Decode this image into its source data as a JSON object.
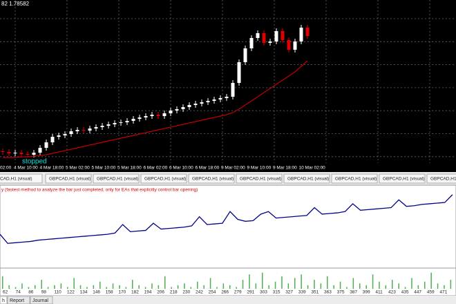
{
  "chart_data": {
    "type": "candlestick",
    "price_label": "82 1.78582",
    "annotation": "stopped",
    "ylim": [
      1.74,
      1.787
    ],
    "up_color": "#ffffff",
    "down_color": "#e00000",
    "open": [
      1.7432,
      1.743,
      1.7426,
      1.7428,
      1.7424,
      1.7422,
      1.7428,
      1.7442,
      1.7458,
      1.7474,
      1.7478,
      1.7482,
      1.749,
      1.7494,
      1.7492,
      1.7498,
      1.7502,
      1.7506,
      1.751,
      1.7514,
      1.7516,
      1.752,
      1.7526,
      1.753,
      1.7534,
      1.7538,
      1.7534,
      1.7542,
      1.755,
      1.7554,
      1.756,
      1.7566,
      1.757,
      1.7574,
      1.7578,
      1.7582,
      1.7586,
      1.759,
      1.763,
      1.769,
      1.773,
      1.776,
      1.7774,
      1.7746,
      1.775,
      1.778,
      1.7754,
      1.7726,
      1.775,
      1.779
    ],
    "close": [
      1.743,
      1.7426,
      1.7428,
      1.7424,
      1.7422,
      1.7428,
      1.7442,
      1.7458,
      1.7474,
      1.7478,
      1.7482,
      1.749,
      1.7494,
      1.7492,
      1.7498,
      1.7502,
      1.7506,
      1.751,
      1.7514,
      1.7516,
      1.752,
      1.7526,
      1.753,
      1.7534,
      1.7538,
      1.7534,
      1.7542,
      1.755,
      1.7554,
      1.756,
      1.7566,
      1.757,
      1.7574,
      1.7578,
      1.7582,
      1.7586,
      1.759,
      1.763,
      1.769,
      1.773,
      1.776,
      1.7774,
      1.7746,
      1.775,
      1.778,
      1.7754,
      1.7726,
      1.775,
      1.779,
      1.7766
    ],
    "moving_average": {
      "color": "#c00000",
      "values": [
        1.7414,
        1.7414,
        1.7414,
        1.7416,
        1.7416,
        1.7418,
        1.742,
        1.7422,
        1.7426,
        1.743,
        1.7434,
        1.7438,
        1.7442,
        1.7446,
        1.745,
        1.7454,
        1.7458,
        1.7462,
        1.7466,
        1.747,
        1.7474,
        1.7478,
        1.7482,
        1.7486,
        1.749,
        1.7494,
        1.7498,
        1.7502,
        1.7506,
        1.751,
        1.7514,
        1.7518,
        1.7522,
        1.7526,
        1.753,
        1.7534,
        1.7538,
        1.7544,
        1.7554,
        1.7566,
        1.7578,
        1.759,
        1.7602,
        1.7614,
        1.7626,
        1.7638,
        1.765,
        1.7662,
        1.7678,
        1.7694
      ]
    },
    "categories": [
      "02:00",
      "4 Mar 10:00",
      "4 Mar 18:00",
      "5 Mar 02:00",
      "5 Mar 10:00",
      "5 Mar 18:00",
      "6 Mar 02:00",
      "6 Mar 10:00",
      "6 Mar 18:00",
      "9 Mar 02:00",
      "9 Mar 10:00",
      "9 Mar 18:00",
      "10 Mar 02:00"
    ]
  },
  "tabs": [
    "CAD,H1 (visual)",
    "GBPCAD,H1 (visual)",
    "GBPCAD,H1 (visual)",
    "GBPCAD,H1 (visual)",
    "GBPCAD,H1 (visual)",
    "GBPCAD,H1 (visual)",
    "GBPCAD,H1 (visual)",
    "GBPCAD,H1 (visual)",
    "GBPCAD,H1 (visual)",
    "GBPCAD,H1 (visual)"
  ],
  "tester": {
    "message": "y (fastest method to analyze the bar just completed, only for EAs that explicitly control bar opening)",
    "equity": {
      "color": "#00008b",
      "ylim": [
        0,
        100
      ],
      "values": [
        35,
        21,
        22,
        23,
        24,
        26,
        27,
        28,
        29,
        30,
        31,
        32,
        33,
        34,
        35,
        37,
        50,
        39,
        40,
        41,
        52,
        43,
        44,
        45,
        46,
        48,
        62,
        50,
        51,
        52,
        70,
        58,
        55,
        56,
        66,
        70,
        60,
        61,
        62,
        63,
        64,
        76,
        66,
        67,
        68,
        70,
        82,
        72,
        73,
        74,
        75,
        76,
        88,
        78,
        79,
        81,
        82,
        83,
        84,
        96
      ]
    },
    "volume": {
      "color": "#4caf50",
      "ylim": [
        0,
        10
      ],
      "values": [
        7,
        2,
        1,
        3,
        1,
        2,
        5,
        1,
        2,
        3,
        1,
        6,
        2,
        1,
        2,
        4,
        1,
        3,
        2,
        1,
        5,
        2,
        1,
        3,
        2,
        7,
        1,
        2,
        3,
        1,
        4,
        2,
        6,
        1,
        3,
        2,
        1,
        5,
        8,
        3,
        9,
        2,
        4,
        7,
        3,
        6,
        8,
        2,
        5,
        3,
        7,
        2,
        4,
        1,
        6,
        3,
        2,
        8,
        4,
        2,
        5,
        3,
        1,
        6,
        2,
        4,
        9,
        3,
        2,
        5
      ]
    },
    "axis_labels": [
      "62",
      "74",
      "86",
      "98",
      "110",
      "122",
      "134",
      "146",
      "158",
      "170",
      "182",
      "194",
      "206",
      "218",
      "230",
      "242",
      "254",
      "266",
      "279",
      "291",
      "303",
      "315",
      "327",
      "339",
      "351",
      "363",
      "375",
      "387",
      "399",
      "411",
      "423",
      "435",
      "447",
      "459",
      "471"
    ],
    "bottom_tabs": [
      "h",
      "Report",
      "Journal"
    ]
  }
}
